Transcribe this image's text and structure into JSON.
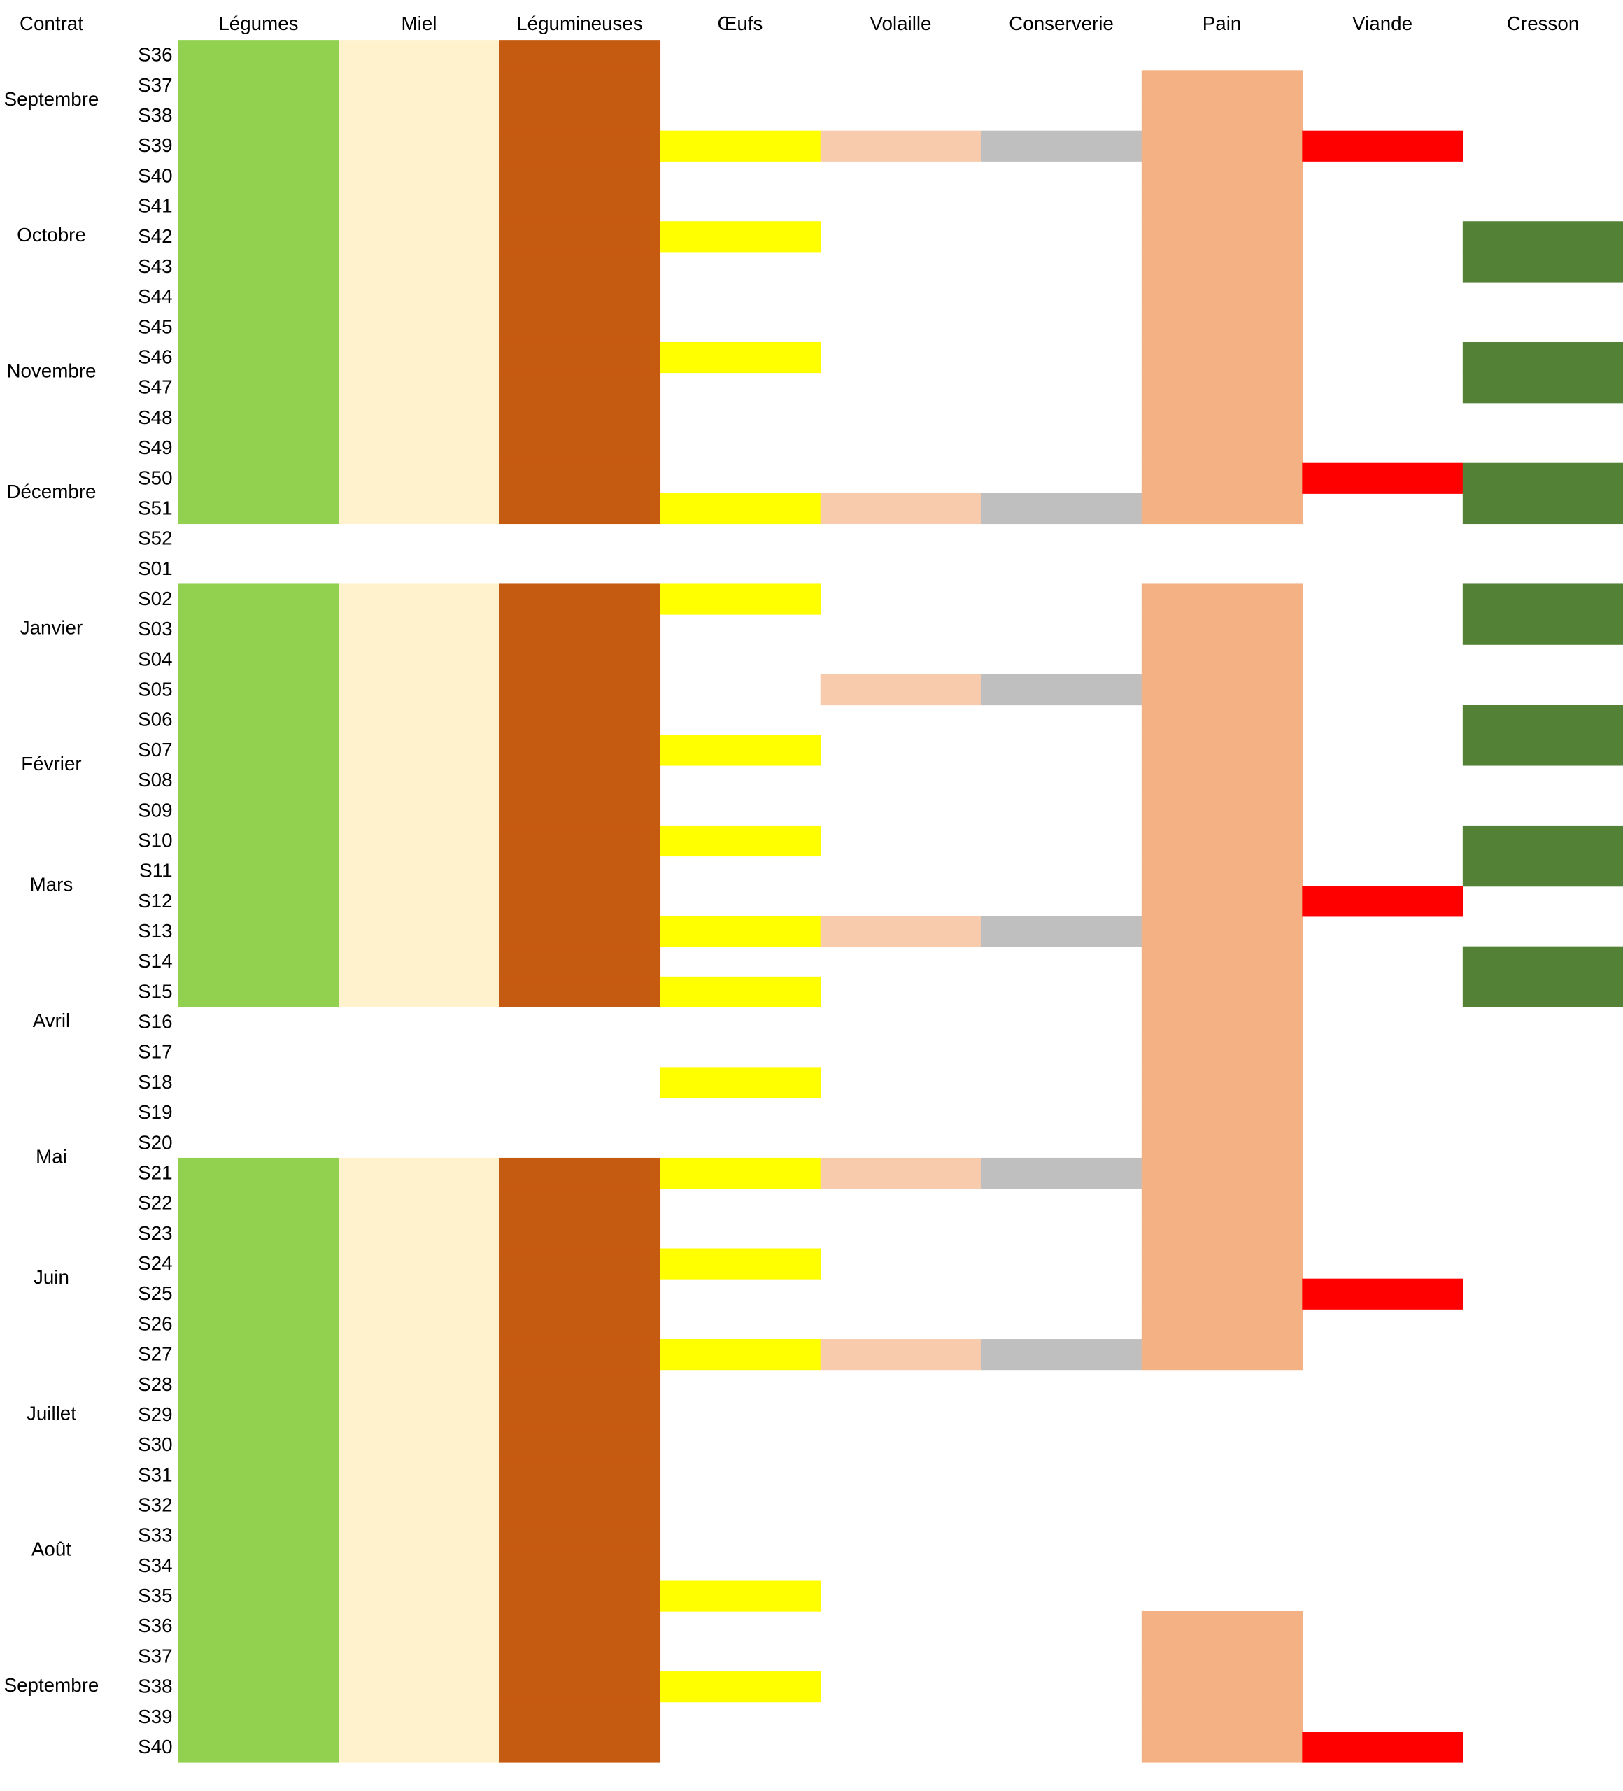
{
  "header": {
    "contract_label": "Contrat"
  },
  "months": [
    "Septembre",
    "Octobre",
    "Novembre",
    "Décembre",
    "Janvier",
    "Février",
    "Mars",
    "Avril",
    "Mai",
    "Juin",
    "Juillet",
    "Août",
    "Septembre"
  ],
  "weeks": [
    "S36",
    "S37",
    "S38",
    "S39",
    "S40",
    "S41",
    "S42",
    "S43",
    "S44",
    "S45",
    "S46",
    "S47",
    "S48",
    "S49",
    "S50",
    "S51",
    "S52",
    "S01",
    "S02",
    "S03",
    "S04",
    "S05",
    "S06",
    "S07",
    "S08",
    "S09",
    "S10",
    "S11",
    "S12",
    "S13",
    "S14",
    "S15",
    "S16",
    "S17",
    "S18",
    "S19",
    "S20",
    "S21",
    "S22",
    "S23",
    "S24",
    "S25",
    "S26",
    "S27",
    "S28",
    "S29",
    "S30",
    "S31",
    "S32",
    "S33",
    "S34",
    "S35",
    "S36",
    "S37",
    "S38",
    "S39",
    "S40"
  ],
  "columns": [
    {
      "name": "Légumes",
      "color": "#92d050",
      "rows": [
        0,
        1,
        2,
        3,
        4,
        5,
        6,
        7,
        8,
        9,
        10,
        11,
        12,
        13,
        14,
        15,
        18,
        19,
        20,
        21,
        22,
        23,
        24,
        25,
        26,
        27,
        28,
        29,
        30,
        31,
        37,
        38,
        39,
        40,
        41,
        42,
        43,
        44,
        45,
        46,
        47,
        48,
        49,
        50,
        51,
        52,
        53,
        54,
        55,
        56
      ]
    },
    {
      "name": "Miel",
      "color": "#fff2cc",
      "rows": [
        0,
        1,
        2,
        3,
        4,
        5,
        6,
        7,
        8,
        9,
        10,
        11,
        12,
        13,
        14,
        15,
        18,
        19,
        20,
        21,
        22,
        23,
        24,
        25,
        26,
        27,
        28,
        29,
        30,
        31,
        37,
        38,
        39,
        40,
        41,
        42,
        43,
        44,
        45,
        46,
        47,
        48,
        49,
        50,
        51,
        52,
        53,
        54,
        55,
        56
      ]
    },
    {
      "name": "Légumineuses",
      "color": "#c55a11",
      "rows": [
        0,
        1,
        2,
        3,
        4,
        5,
        6,
        7,
        8,
        9,
        10,
        11,
        12,
        13,
        14,
        15,
        18,
        19,
        20,
        21,
        22,
        23,
        24,
        25,
        26,
        27,
        28,
        29,
        30,
        31,
        37,
        38,
        39,
        40,
        41,
        42,
        43,
        44,
        45,
        46,
        47,
        48,
        49,
        50,
        51,
        52,
        53,
        54,
        55,
        56
      ]
    },
    {
      "name": "Œufs",
      "color": "#ffff00",
      "rows": [
        3,
        6,
        10,
        15,
        18,
        23,
        26,
        29,
        31,
        34,
        37,
        40,
        43,
        51,
        54
      ]
    },
    {
      "name": "Volaille",
      "color": "#f8cbad",
      "rows": [
        3,
        15,
        21,
        29,
        37,
        43
      ]
    },
    {
      "name": "Conserverie",
      "color": "#bfbfbf",
      "rows": [
        3,
        15,
        21,
        29,
        37,
        43
      ]
    },
    {
      "name": "Pain",
      "color": "#f4b183",
      "rows": [
        1,
        2,
        3,
        4,
        5,
        6,
        7,
        8,
        9,
        10,
        11,
        12,
        13,
        14,
        15,
        18,
        19,
        20,
        21,
        22,
        23,
        24,
        25,
        26,
        27,
        28,
        29,
        30,
        31,
        32,
        33,
        34,
        35,
        36,
        37,
        38,
        39,
        40,
        41,
        42,
        43,
        52,
        53,
        54,
        55,
        56
      ]
    },
    {
      "name": "Viande",
      "color": "#ff0000",
      "rows": [
        3,
        14,
        28,
        41,
        56
      ]
    },
    {
      "name": "Cresson",
      "color": "#538135",
      "rows": [
        6,
        7,
        10,
        11,
        14,
        15,
        18,
        19,
        22,
        23,
        26,
        27,
        30,
        31
      ]
    }
  ]
}
